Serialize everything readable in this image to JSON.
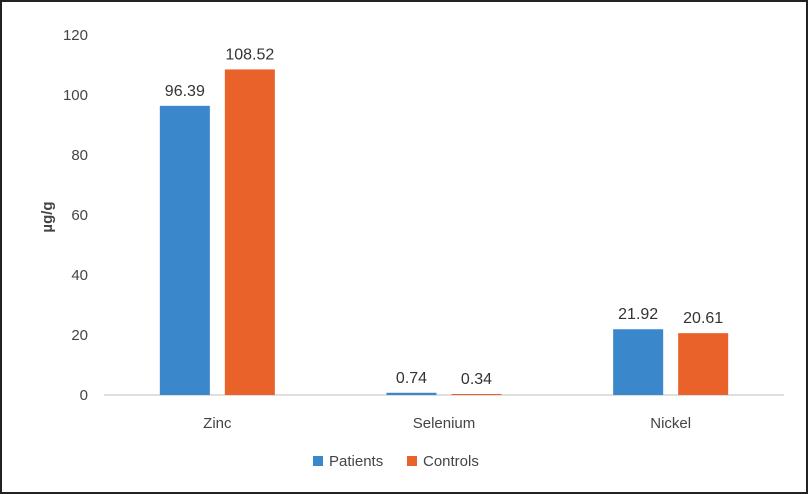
{
  "chart_data": {
    "type": "bar",
    "title": "",
    "xlabel": "",
    "ylabel": "µg/g",
    "ylim": [
      0,
      120
    ],
    "yticks": [
      0,
      20,
      40,
      60,
      80,
      100,
      120
    ],
    "categories": [
      "Zinc",
      "Selenium",
      "Nickel"
    ],
    "series": [
      {
        "name": "Patients",
        "color": "#3a87cc",
        "values": [
          96.39,
          0.74,
          21.92
        ],
        "labels": [
          "96.39",
          "0.74",
          "21.92"
        ]
      },
      {
        "name": "Controls",
        "color": "#e8622a",
        "values": [
          108.52,
          0.34,
          20.61
        ],
        "labels": [
          "108.52",
          "0.34",
          "20.61"
        ]
      }
    ],
    "grid": false,
    "legend": "bottom"
  }
}
